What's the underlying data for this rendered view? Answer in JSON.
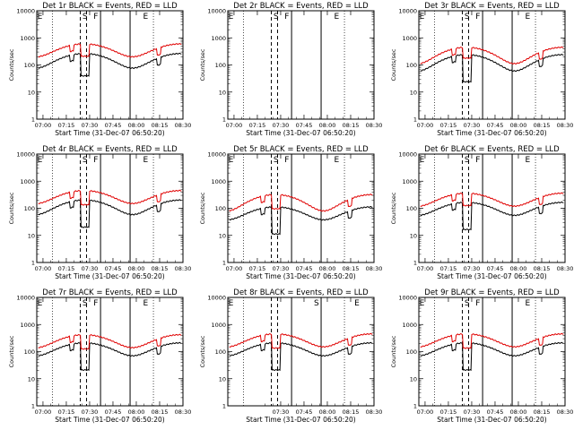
{
  "chart_data": [
    {
      "type": "line",
      "title": "Det 1r BLACK = Events, RED = LLD",
      "xlabel": "Start Time (31-Dec-07 06:50:20)",
      "ylabel": "Counts/sec",
      "yscale": "log",
      "ylim": [
        1,
        10000
      ],
      "xlim_minutes": [
        6,
        100
      ],
      "x_tick_labels": [
        "07:00",
        "07:15",
        "07:30",
        "07:45",
        "08:00",
        "08:15",
        "08:30"
      ],
      "y_tick_labels": [
        "1",
        "10",
        "100",
        "1000",
        "10000"
      ],
      "markers": [
        {
          "label": "E",
          "minute": 8
        },
        {
          "label": "S",
          "minute": 37
        },
        {
          "label": "F",
          "minute": 44
        },
        {
          "label": "E",
          "minute": 76
        }
      ],
      "series": [
        {
          "name": "Events",
          "color": "#000000",
          "base": 170,
          "amp": 0.55,
          "dip": 0.15
        },
        {
          "name": "LLD",
          "color": "#e00000",
          "base": 400,
          "amp": 0.5,
          "dip": 0.35
        }
      ]
    },
    {
      "type": "line",
      "title": "Det 2r BLACK = Events, RED = LLD",
      "xlabel": "Start Time (31-Dec-07 06:50:20)",
      "ylabel": "Counts/sec",
      "yscale": "log",
      "ylim": [
        1,
        10000
      ],
      "xlim_minutes": [
        6,
        100
      ],
      "x_tick_labels": [
        "07:00",
        "07:15",
        "07:30",
        "07:45",
        "08:00",
        "08:15",
        "08:30"
      ],
      "y_tick_labels": [
        "1",
        "10",
        "100",
        "1000",
        "10000"
      ],
      "markers": [
        {
          "label": "E",
          "minute": 8
        },
        {
          "label": "S",
          "minute": 37
        },
        {
          "label": "F",
          "minute": 44
        },
        {
          "label": "E",
          "minute": 76
        }
      ],
      "series": []
    },
    {
      "type": "line",
      "title": "Det 3r BLACK = Events, RED = LLD",
      "xlabel": "Start Time (31-Dec-07 06:50:20)",
      "ylabel": "Counts/sec",
      "yscale": "log",
      "ylim": [
        1,
        10000
      ],
      "xlim_minutes": [
        6,
        100
      ],
      "x_tick_labels": [
        "07:00",
        "07:15",
        "07:30",
        "07:45",
        "08:00",
        "08:15",
        "08:30"
      ],
      "y_tick_labels": [
        "1",
        "10",
        "100",
        "1000",
        "10000"
      ],
      "markers": [
        {
          "label": "E",
          "minute": 8
        },
        {
          "label": "S",
          "minute": 37
        },
        {
          "label": "F",
          "minute": 44
        },
        {
          "label": "E",
          "minute": 76
        }
      ],
      "series": [
        {
          "name": "Events",
          "color": "#000000",
          "base": 150,
          "amp": 0.6,
          "dip": 0.1
        },
        {
          "name": "LLD",
          "color": "#e00000",
          "base": 280,
          "amp": 0.6,
          "dip": 0.4
        }
      ]
    },
    {
      "type": "line",
      "title": "Det 4r BLACK = Events, RED = LLD",
      "xlabel": "Start Time (31-Dec-07 06:50:20)",
      "ylabel": "Counts/sec",
      "yscale": "log",
      "ylim": [
        1,
        10000
      ],
      "xlim_minutes": [
        6,
        100
      ],
      "x_tick_labels": [
        "07:00",
        "07:15",
        "07:30",
        "07:45",
        "08:00",
        "08:15",
        "08:30"
      ],
      "y_tick_labels": [
        "1",
        "10",
        "100",
        "1000",
        "10000"
      ],
      "markers": [
        {
          "label": "E",
          "minute": 8
        },
        {
          "label": "S",
          "minute": 37
        },
        {
          "label": "F",
          "minute": 44
        },
        {
          "label": "E",
          "minute": 76
        }
      ],
      "series": [
        {
          "name": "Events",
          "color": "#000000",
          "base": 130,
          "amp": 0.55,
          "dip": 0.1
        },
        {
          "name": "LLD",
          "color": "#e00000",
          "base": 300,
          "amp": 0.5,
          "dip": 0.3
        }
      ]
    },
    {
      "type": "line",
      "title": "Det 5r BLACK = Events, RED = LLD",
      "xlabel": "Start Time (31-Dec-07 06:50:20)",
      "ylabel": "Counts/sec",
      "yscale": "log",
      "ylim": [
        1,
        10000
      ],
      "xlim_minutes": [
        6,
        100
      ],
      "x_tick_labels": [
        "07:00",
        "07:15",
        "07:30",
        "07:45",
        "08:00",
        "08:15",
        "08:30"
      ],
      "y_tick_labels": [
        "1",
        "10",
        "100",
        "1000",
        "10000"
      ],
      "markers": [
        {
          "label": "E",
          "minute": 8
        },
        {
          "label": "S",
          "minute": 37
        },
        {
          "label": "F",
          "minute": 44
        },
        {
          "label": "E",
          "minute": 76
        }
      ],
      "series": [
        {
          "name": "Events",
          "color": "#000000",
          "base": 75,
          "amp": 0.5,
          "dip": 0.1
        },
        {
          "name": "LLD",
          "color": "#e00000",
          "base": 200,
          "amp": 0.6,
          "dip": 0.3
        }
      ]
    },
    {
      "type": "line",
      "title": "Det 6r BLACK = Events, RED = LLD",
      "xlabel": "Start Time (31-Dec-07 06:50:20)",
      "ylabel": "Counts/sec",
      "yscale": "log",
      "ylim": [
        1,
        10000
      ],
      "xlim_minutes": [
        6,
        100
      ],
      "x_tick_labels": [
        "07:00",
        "07:15",
        "07:30",
        "07:45",
        "08:00",
        "08:15",
        "08:30"
      ],
      "y_tick_labels": [
        "1",
        "10",
        "100",
        "1000",
        "10000"
      ],
      "markers": [
        {
          "label": "E",
          "minute": 8
        },
        {
          "label": "S",
          "minute": 37
        },
        {
          "label": "F",
          "minute": 44
        },
        {
          "label": "E",
          "minute": 76
        }
      ],
      "series": [
        {
          "name": "Events",
          "color": "#000000",
          "base": 110,
          "amp": 0.5,
          "dip": 0.1
        },
        {
          "name": "LLD",
          "color": "#e00000",
          "base": 240,
          "amp": 0.5,
          "dip": 0.35
        }
      ]
    },
    {
      "type": "line",
      "title": "Det 7r BLACK = Events, RED = LLD",
      "xlabel": "Start Time (31-Dec-07 06:50:20)",
      "ylabel": "Counts/sec",
      "yscale": "log",
      "ylim": [
        1,
        10000
      ],
      "xlim_minutes": [
        6,
        100
      ],
      "x_tick_labels": [
        "07:00",
        "07:15",
        "07:30",
        "07:45",
        "08:00",
        "08:15",
        "08:30"
      ],
      "y_tick_labels": [
        "1",
        "10",
        "100",
        "1000",
        "10000"
      ],
      "markers": [
        {
          "label": "E",
          "minute": 8
        },
        {
          "label": "S",
          "minute": 37
        },
        {
          "label": "F",
          "minute": 44
        },
        {
          "label": "E",
          "minute": 76
        }
      ],
      "series": [
        {
          "name": "Events",
          "color": "#000000",
          "base": 140,
          "amp": 0.5,
          "dip": 0.1
        },
        {
          "name": "LLD",
          "color": "#e00000",
          "base": 280,
          "amp": 0.5,
          "dip": 0.3
        }
      ]
    },
    {
      "type": "line",
      "title": "Det 8r BLACK = Events, RED = LLD",
      "xlabel": "Start Time (31-Dec-07 06:50:20)",
      "ylabel": "Counts/sec",
      "yscale": "log",
      "ylim": [
        1,
        10000
      ],
      "xlim_minutes": [
        6,
        100
      ],
      "x_tick_labels": [
        "07:30",
        "07:45",
        "08:00",
        "08:15",
        "08:30"
      ],
      "y_tick_labels": [
        "1",
        "10",
        "100",
        "1000",
        "10000"
      ],
      "markers": [
        {
          "label": "E",
          "minute": 8
        },
        {
          "label": "S",
          "minute": 63
        },
        {
          "label": "E",
          "minute": 89
        }
      ],
      "series": [
        {
          "name": "Events",
          "color": "#000000",
          "base": 140,
          "amp": 0.5,
          "dip": 0.1
        },
        {
          "name": "LLD",
          "color": "#e00000",
          "base": 300,
          "amp": 0.5,
          "dip": 0.3
        }
      ]
    },
    {
      "type": "line",
      "title": "Det 9r BLACK = Events, RED = LLD",
      "xlabel": "Start Time (31-Dec-07 06:50:20)",
      "ylabel": "Counts/sec",
      "yscale": "log",
      "ylim": [
        1,
        10000
      ],
      "xlim_minutes": [
        6,
        100
      ],
      "x_tick_labels": [
        "07:00",
        "07:15",
        "07:30",
        "07:45",
        "08:00",
        "08:15",
        "08:30"
      ],
      "y_tick_labels": [
        "1",
        "10",
        "100",
        "1000",
        "10000"
      ],
      "markers": [
        {
          "label": "E",
          "minute": 8
        },
        {
          "label": "S",
          "minute": 37
        },
        {
          "label": "F",
          "minute": 44
        },
        {
          "label": "E",
          "minute": 76
        }
      ],
      "series": [
        {
          "name": "Events",
          "color": "#000000",
          "base": 140,
          "amp": 0.5,
          "dip": 0.1
        },
        {
          "name": "LLD",
          "color": "#e00000",
          "base": 300,
          "amp": 0.5,
          "dip": 0.3
        }
      ]
    }
  ]
}
